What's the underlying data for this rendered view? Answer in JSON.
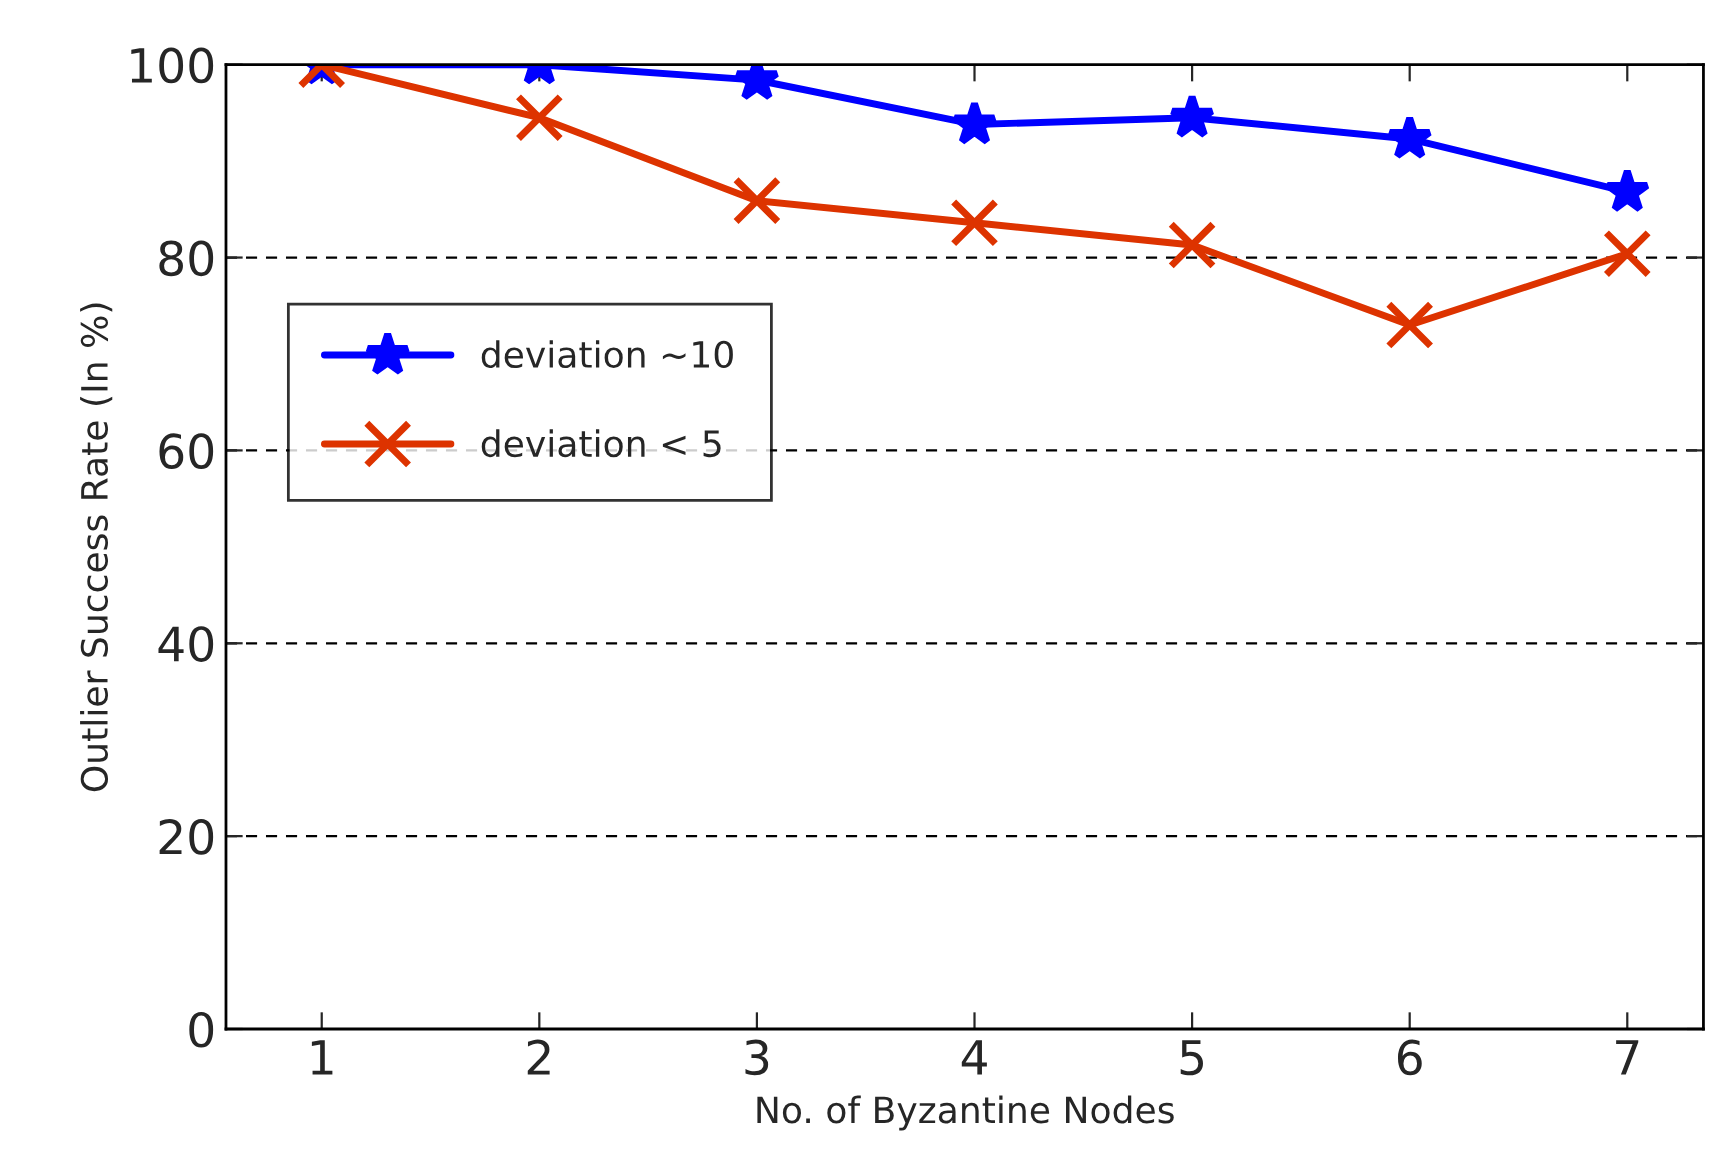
{
  "chart_data": {
    "type": "line",
    "xlabel": "No. of Byzantine Nodes",
    "ylabel": "Outlier Success Rate (In %)",
    "x": [
      1,
      2,
      3,
      4,
      5,
      6,
      7
    ],
    "series": [
      {
        "name": "deviation ~10",
        "color": "#0000ff",
        "marker": "star",
        "values": [
          100,
          100,
          98.4,
          93.8,
          94.5,
          92.3,
          86.8
        ]
      },
      {
        "name": "deviation < 5",
        "color": "#dd3300",
        "marker": "cross",
        "values": [
          100,
          94.5,
          85.9,
          83.6,
          81.3,
          73.0,
          80.4
        ]
      }
    ],
    "xlim": [
      0.56,
      7.35
    ],
    "xticks": [
      1,
      2,
      3,
      4,
      5,
      6,
      7
    ],
    "ylim": [
      0,
      100
    ],
    "yticks": [
      0,
      20,
      40,
      60,
      80,
      100
    ],
    "grid": "y",
    "legend": "left",
    "line_style": "solid"
  }
}
